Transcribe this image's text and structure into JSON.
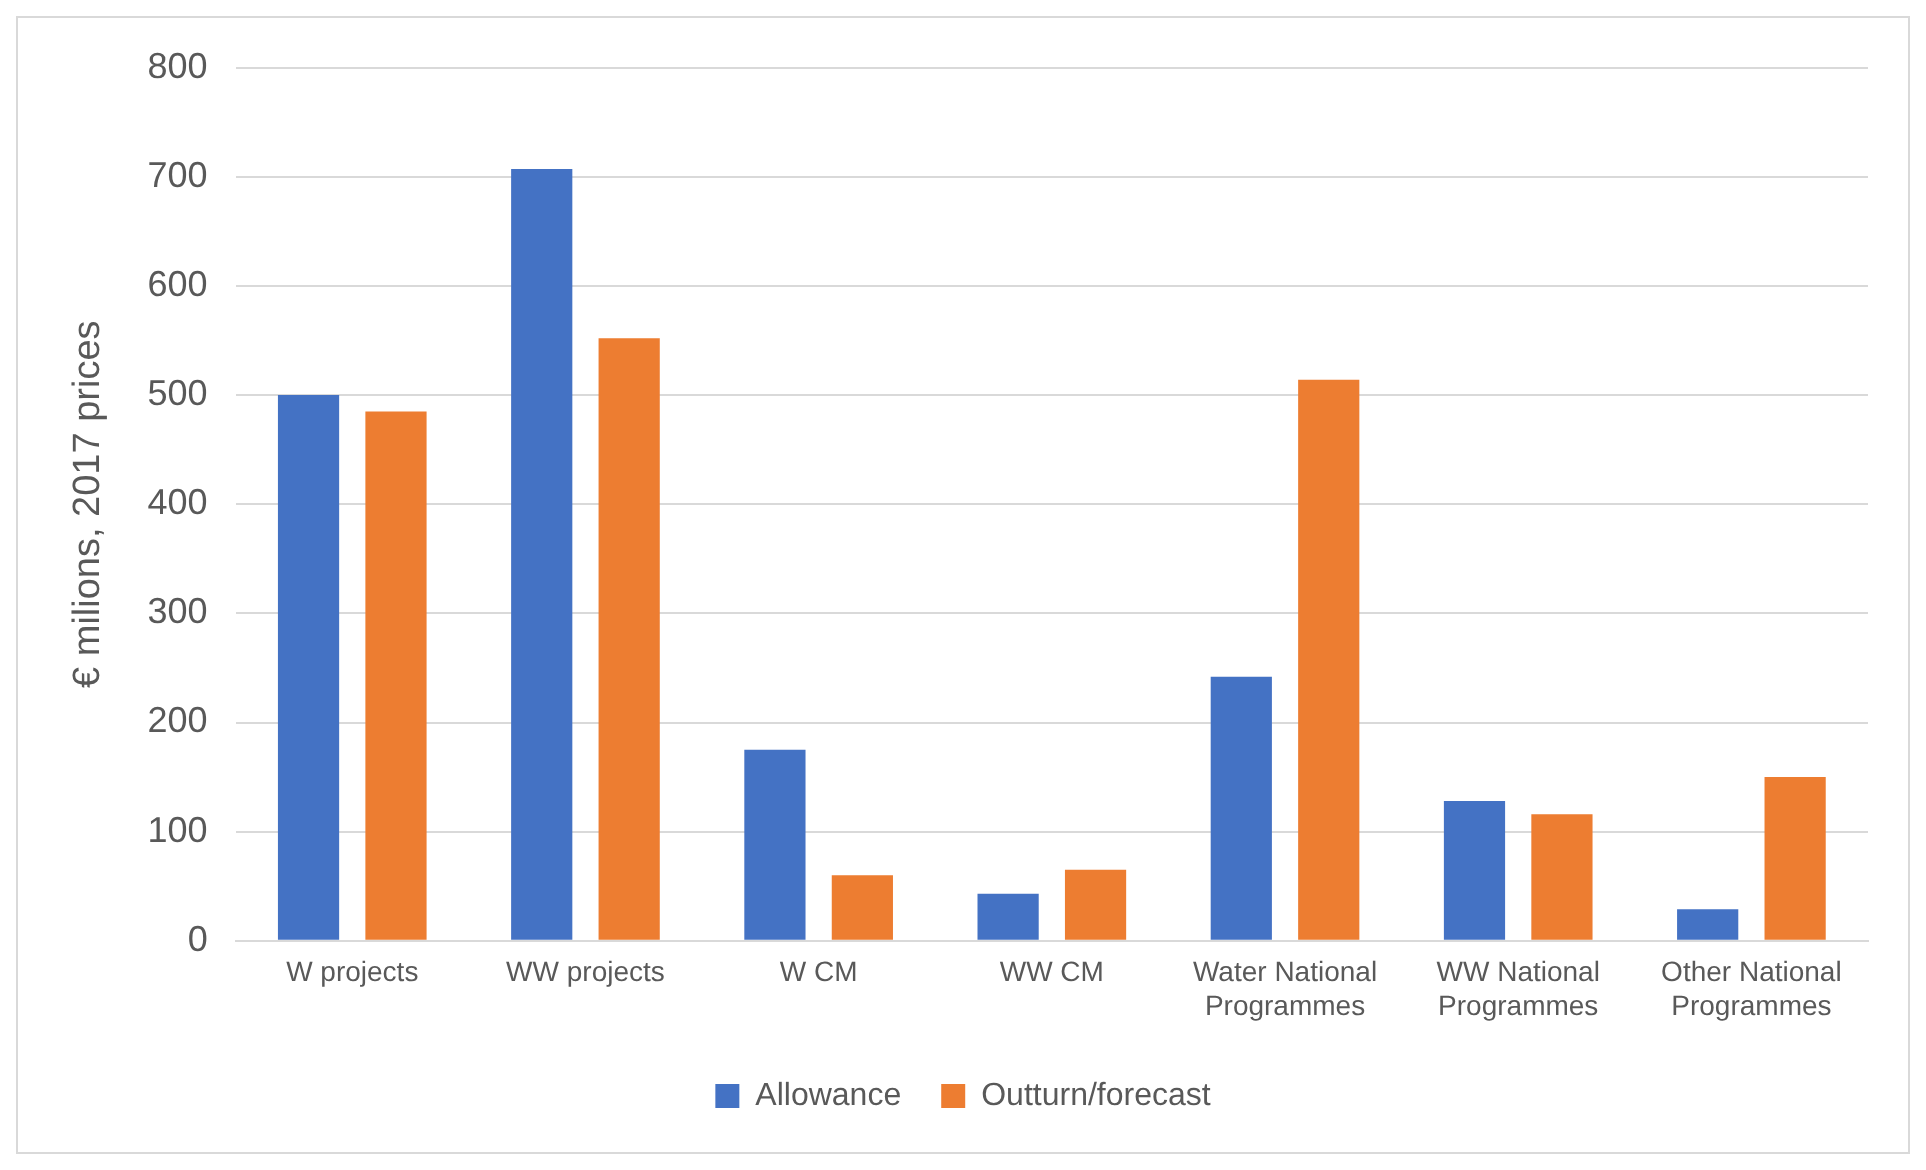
{
  "chart_data": {
    "type": "bar",
    "ylabel": "€ milions, 2017 prices",
    "categories": [
      "W projects",
      "WW projects",
      "W CM",
      "WW CM",
      "Water National Programmes",
      "WW National Programmes",
      "Other National Programmes"
    ],
    "series": [
      {
        "name": "Allowance",
        "color": "#4472c4",
        "values": [
          500,
          707,
          175,
          43,
          242,
          128,
          29
        ]
      },
      {
        "name": "Outturn/forecast",
        "color": "#ed7d31",
        "values": [
          485,
          552,
          60,
          65,
          514,
          116,
          150
        ]
      }
    ],
    "ylim": [
      0,
      800
    ],
    "yticks": [
      0,
      100,
      200,
      300,
      400,
      500,
      600,
      700,
      800
    ],
    "grid": "y",
    "legend": "bottom"
  }
}
